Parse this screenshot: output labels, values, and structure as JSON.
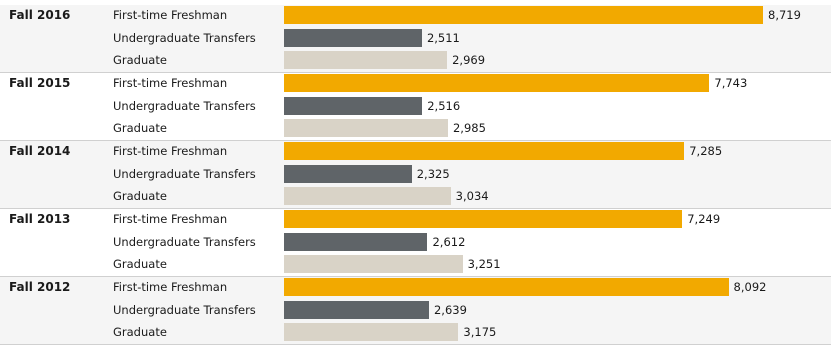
{
  "chart_data": {
    "type": "bar",
    "orientation": "horizontal",
    "title": "",
    "xlabel": "",
    "ylabel": "",
    "grid": false,
    "xlim": [
      0,
      9000
    ],
    "groups": [
      {
        "term": "Fall 2016",
        "bars": [
          {
            "category": "First-time Freshman",
            "value": 8719,
            "label": "8,719"
          },
          {
            "category": "Undergraduate Transfers",
            "value": 2511,
            "label": "2,511"
          },
          {
            "category": "Graduate",
            "value": 2969,
            "label": "2,969"
          }
        ]
      },
      {
        "term": "Fall 2015",
        "bars": [
          {
            "category": "First-time Freshman",
            "value": 7743,
            "label": "7,743"
          },
          {
            "category": "Undergraduate Transfers",
            "value": 2516,
            "label": "2,516"
          },
          {
            "category": "Graduate",
            "value": 2985,
            "label": "2,985"
          }
        ]
      },
      {
        "term": "Fall 2014",
        "bars": [
          {
            "category": "First-time Freshman",
            "value": 7285,
            "label": "7,285"
          },
          {
            "category": "Undergraduate Transfers",
            "value": 2325,
            "label": "2,325"
          },
          {
            "category": "Graduate",
            "value": 3034,
            "label": "3,034"
          }
        ]
      },
      {
        "term": "Fall 2013",
        "bars": [
          {
            "category": "First-time Freshman",
            "value": 7249,
            "label": "7,249"
          },
          {
            "category": "Undergraduate Transfers",
            "value": 2612,
            "label": "2,612"
          },
          {
            "category": "Graduate",
            "value": 3251,
            "label": "3,251"
          }
        ]
      },
      {
        "term": "Fall 2012",
        "bars": [
          {
            "category": "First-time Freshman",
            "value": 8092,
            "label": "8,092"
          },
          {
            "category": "Undergraduate Transfers",
            "value": 2639,
            "label": "2,639"
          },
          {
            "category": "Graduate",
            "value": 3175,
            "label": "3,175"
          }
        ]
      }
    ],
    "colors": {
      "First-time Freshman": "#f2a900",
      "Undergraduate Transfers": "#5f6468",
      "Graduate": "#d9d3c7"
    }
  }
}
